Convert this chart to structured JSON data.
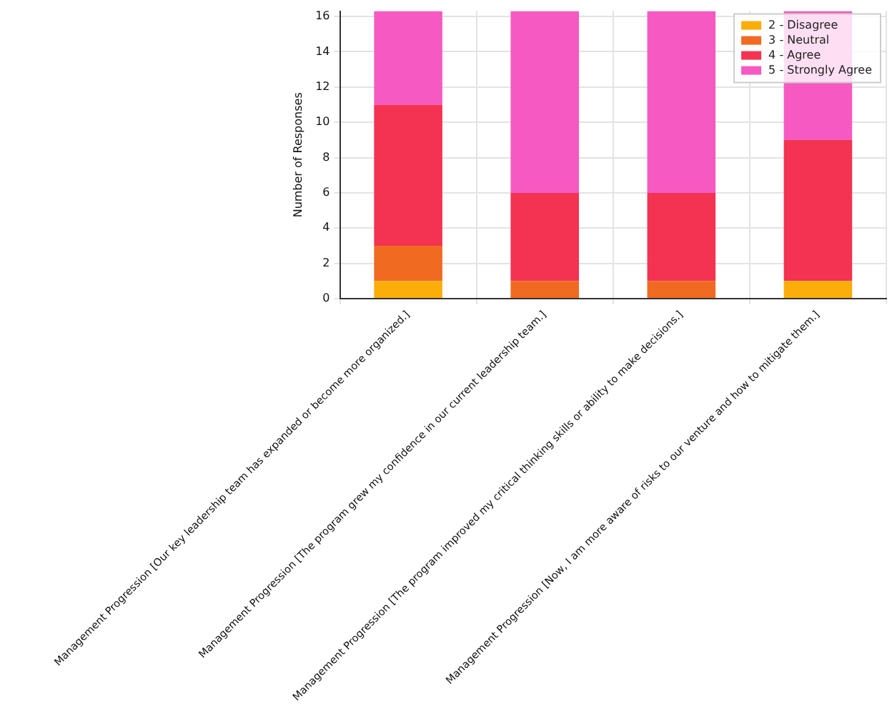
{
  "chart_data": {
    "type": "bar",
    "stacked": true,
    "ylabel": "Number of Responses",
    "categories": [
      "Management Progression [Our key leadership team has expanded or become more organized.]",
      "Management Progression [The program grew my confidence in our current leadership team.]",
      "Management Progression [The program improved my critical thinking skills or ability to make decisions.]",
      "Management Progression [Now, I am more aware of risks to our venture and how to mitigate them.]"
    ],
    "series": [
      {
        "name": "2 - Disagree",
        "color": "#fbad0a",
        "values": [
          1,
          0,
          0,
          1
        ]
      },
      {
        "name": "3 - Neutral",
        "color": "#f06a22",
        "values": [
          2,
          1,
          1,
          0
        ]
      },
      {
        "name": "4 - Agree",
        "color": "#f43252",
        "values": [
          8,
          5,
          5,
          8
        ]
      },
      {
        "name": "5 - Strongly Agree",
        "color": "#f65ac2",
        "values": [
          5.3,
          10.3,
          10.3,
          7.3
        ]
      }
    ],
    "ylim": [
      0,
      16.3
    ],
    "yticks": [
      0,
      2,
      4,
      6,
      8,
      10,
      12,
      14,
      16
    ],
    "grid": true,
    "legend": "top right"
  }
}
